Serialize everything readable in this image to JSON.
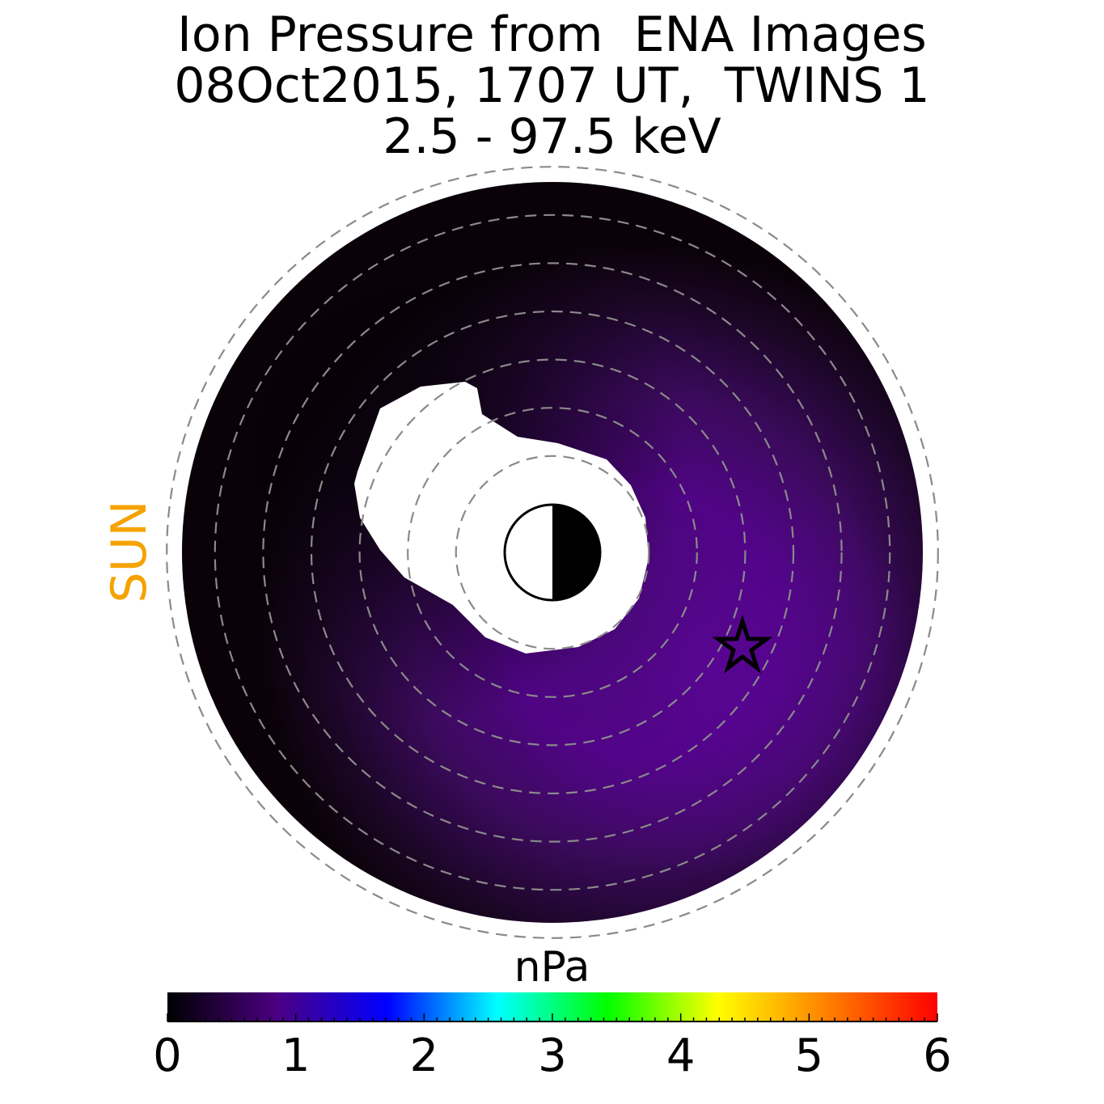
{
  "title_lines": [
    "Ion Pressure from  ENA Images",
    "08Oct2015, 1707 UT,  TWINS 1",
    "2.5 - 97.5 keV"
  ],
  "sun_label": "SUN",
  "sun_color": "#f5a300",
  "chart_data": {
    "type": "heatmap",
    "projection": "polar equatorial plane, sun to the left",
    "title": "Ion Pressure from  ENA Images 08Oct2015, 1707 UT,  TWINS 1 2.5 - 97.5 keV",
    "colorbar": {
      "label": "nPa",
      "range": [
        0,
        6
      ],
      "tick_labels": [
        "0",
        "1",
        "2",
        "3",
        "4",
        "5",
        "6"
      ],
      "colors": [
        "#000000",
        "#4b0082",
        "#0000ff",
        "#00ffff",
        "#00ff00",
        "#ffff00",
        "#ff8000",
        "#ff0000"
      ]
    },
    "dashed_circles": 8,
    "max_pressure_nPa": 0.85,
    "marker": "star"
  }
}
